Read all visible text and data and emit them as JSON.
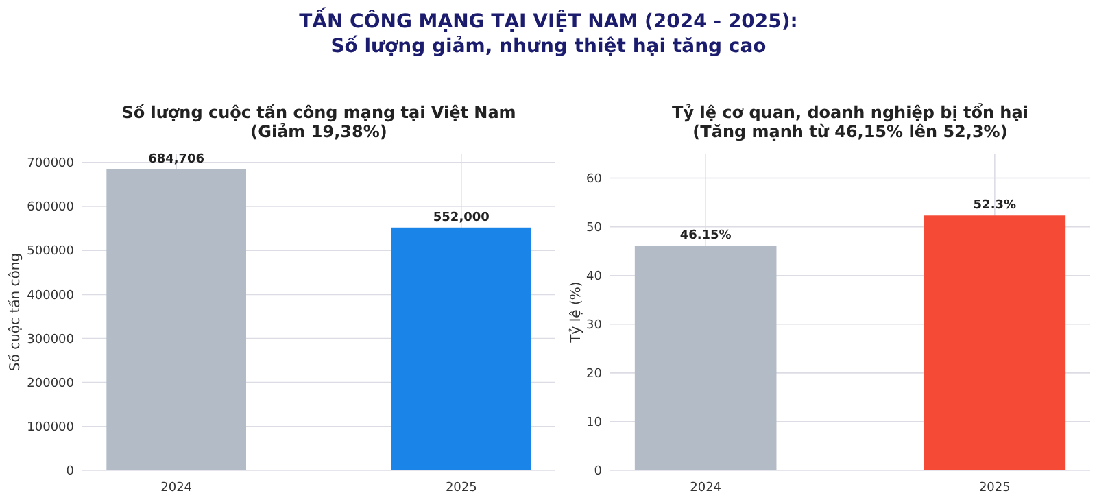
{
  "chart_data": [
    {
      "type": "bar",
      "title": "TẤN CÔNG MẠNG TẠI VIỆT NAM (2024 - 2025):\nSố lượng giảm, nhưng thiệt hại tăng cao",
      "subtitle": "Số lượng cuộc tấn công mạng tại Việt Nam\n(Giảm 19,38%)",
      "ylabel": "Số cuộc tấn công",
      "categories": [
        "2024",
        "2025"
      ],
      "values": [
        684706,
        552000
      ],
      "colors": [
        "#b3bcc6",
        "#1a84e8"
      ],
      "value_labels": [
        "684,706",
        "552,000"
      ],
      "ylim": [
        0,
        720000
      ],
      "yticks": [
        0,
        100000,
        200000,
        300000,
        400000,
        500000,
        600000,
        700000
      ],
      "grid": true
    },
    {
      "type": "bar",
      "subtitle": "Tỷ lệ cơ quan, doanh nghiệp bị tổn hại\n(Tăng mạnh từ 46,15% lên 52,3%)",
      "ylabel": "Tỷ lệ (%)",
      "categories": [
        "2024",
        "2025"
      ],
      "values": [
        46.15,
        52.3
      ],
      "colors": [
        "#b3bcc6",
        "#f44a36"
      ],
      "value_labels": [
        "46.15%",
        "52.3%"
      ],
      "ylim": [
        0,
        65
      ],
      "yticks": [
        0,
        10,
        20,
        30,
        40,
        50,
        60
      ],
      "grid": true
    }
  ]
}
